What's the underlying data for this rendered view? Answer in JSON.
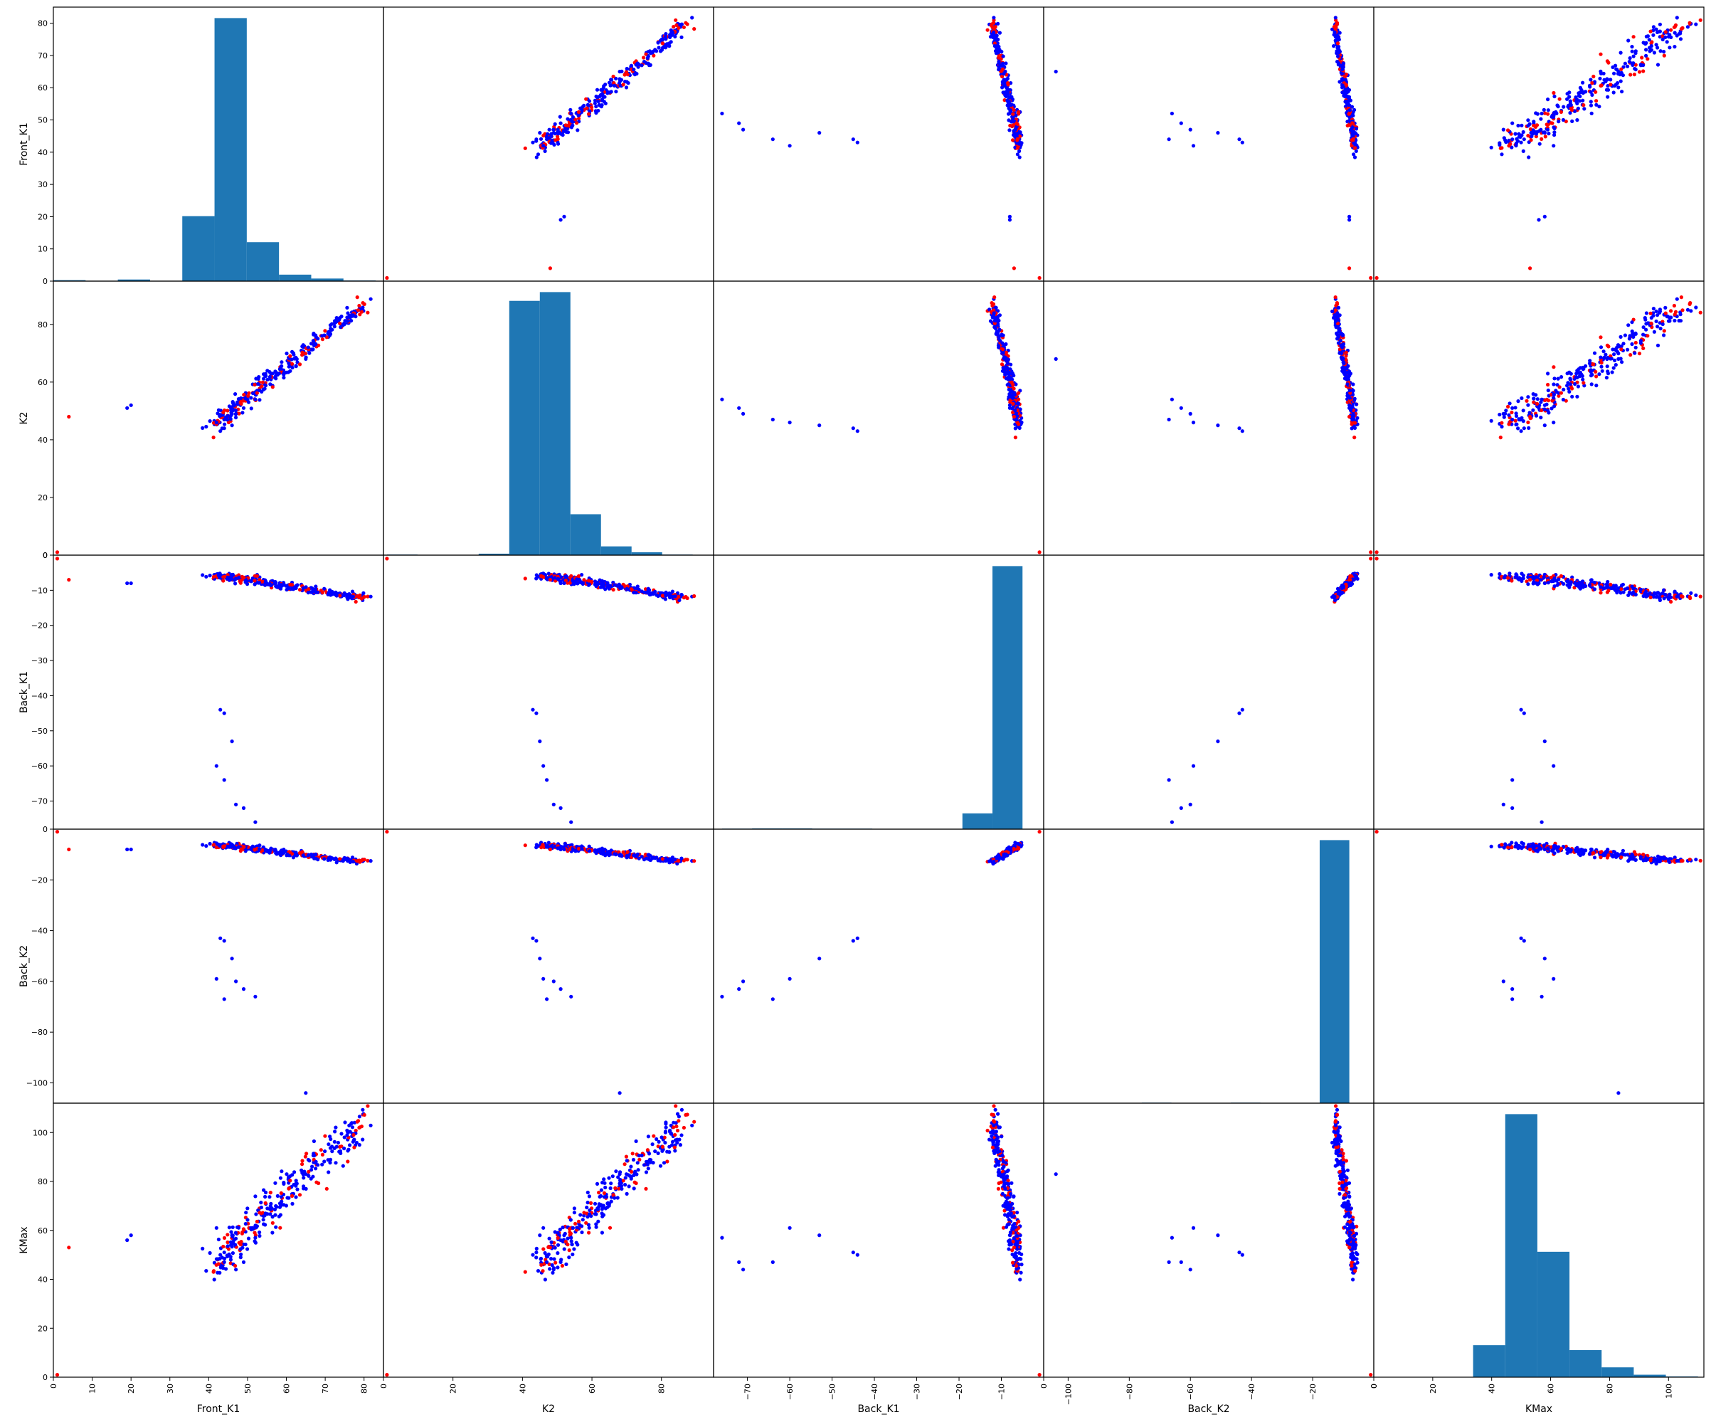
{
  "chart_data": {
    "type": "scatter",
    "variables": [
      "Front_K1",
      "K2",
      "Back_K1",
      "Back_K2",
      "KMax"
    ],
    "ranges": [
      [
        0,
        85
      ],
      [
        0,
        95
      ],
      [
        -78,
        0
      ],
      [
        -108,
        0
      ],
      [
        0,
        112
      ]
    ],
    "ticks": [
      [
        0,
        10,
        20,
        30,
        40,
        50,
        60,
        70,
        80
      ],
      [
        0,
        20,
        40,
        60,
        80
      ],
      [
        -70,
        -60,
        -50,
        -40,
        -30,
        -20,
        -10,
        0
      ],
      [
        -100,
        -80,
        -60,
        -40,
        -20,
        0
      ],
      [
        0,
        20,
        40,
        60,
        80,
        100
      ]
    ],
    "diagonal": "histogram",
    "histogram_color": "#1f77b4",
    "point_colors": {
      "group_a": "#0000ff",
      "group_b": "#ff0000"
    },
    "histograms": [
      {
        "edges": [
          0,
          8.3,
          16.6,
          24.9,
          33.2,
          41.5,
          49.8,
          58.1,
          66.4,
          74.7,
          83
        ],
        "counts": [
          0.3,
          0,
          0.5,
          0,
          20,
          81,
          12,
          2,
          0.8,
          0.2
        ]
      },
      {
        "edges": [
          1,
          9.8,
          18.6,
          27.4,
          36.2,
          45,
          53.8,
          62.6,
          71.4,
          80.2,
          89
        ],
        "counts": [
          0.2,
          0,
          0,
          0.5,
          87,
          90,
          14,
          3,
          1,
          0.2
        ]
      },
      {
        "edges": [
          -76,
          -68.9,
          -61.8,
          -54.7,
          -47.6,
          -40.5,
          -33.4,
          -26.3,
          -19.2,
          -12.1,
          -5
        ],
        "counts": [
          0.2,
          0.3,
          0.3,
          0.2,
          0.2,
          0,
          0,
          0,
          6,
          100
        ]
      },
      {
        "edges": [
          -105,
          -95.3,
          -85.6,
          -75.9,
          -66.2,
          -56.5,
          -46.8,
          -37.1,
          -27.4,
          -17.7,
          -8
        ],
        "counts": [
          0.1,
          0,
          0,
          0.2,
          0.1,
          0.1,
          0.2,
          0,
          0,
          100
        ]
      },
      {
        "edges": [
          1,
          11.9,
          22.8,
          33.7,
          44.6,
          55.5,
          66.4,
          77.3,
          88.2,
          99.1,
          110
        ],
        "counts": [
          0.1,
          0,
          0,
          13,
          107,
          51,
          11,
          4,
          1,
          0.3
        ]
      }
    ],
    "clusters": {
      "main": [
        [
          42,
          46,
          -5.7,
          -6.0,
          48
        ],
        [
          45,
          49,
          -6.1,
          -6.5,
          52
        ],
        [
          48,
          53,
          -6.7,
          -7.1,
          58
        ],
        [
          52,
          57,
          -7.4,
          -7.8,
          63
        ],
        [
          56,
          62,
          -8.1,
          -8.6,
          70
        ],
        [
          60,
          66,
          -8.8,
          -9.4,
          76
        ],
        [
          65,
          71,
          -9.7,
          -10.3,
          83
        ],
        [
          70,
          77,
          -10.6,
          -11.2,
          90
        ],
        [
          76,
          83,
          -11.5,
          -12.1,
          98
        ],
        [
          80,
          87,
          -12.2,
          -12.8,
          105
        ]
      ],
      "spread": [
        2.2,
        2.6,
        0.7,
        0.7,
        6.0
      ]
    },
    "outliers": [
      [
        4,
        48,
        -7,
        -8,
        53
      ],
      [
        1,
        1,
        -1,
        -1,
        1
      ],
      [
        19,
        51,
        -8,
        -8,
        56
      ],
      [
        20,
        52,
        -8,
        -8,
        58
      ],
      [
        43,
        43,
        -44,
        -43,
        50
      ],
      [
        44,
        44,
        -45,
        -44,
        51
      ],
      [
        46,
        45,
        -53,
        -51,
        58
      ],
      [
        42,
        46,
        -60,
        -59,
        61
      ],
      [
        44,
        47,
        -64,
        -67,
        47
      ],
      [
        47,
        49,
        -71,
        -60,
        44
      ],
      [
        49,
        51,
        -72,
        -63,
        47
      ],
      [
        52,
        54,
        -76,
        -66,
        57
      ],
      [
        65,
        68,
        -78,
        -104,
        83
      ]
    ],
    "xlabel_order": [
      "Front_K1",
      "K2",
      "Back_K1",
      "Back_K2",
      "KMax"
    ]
  }
}
